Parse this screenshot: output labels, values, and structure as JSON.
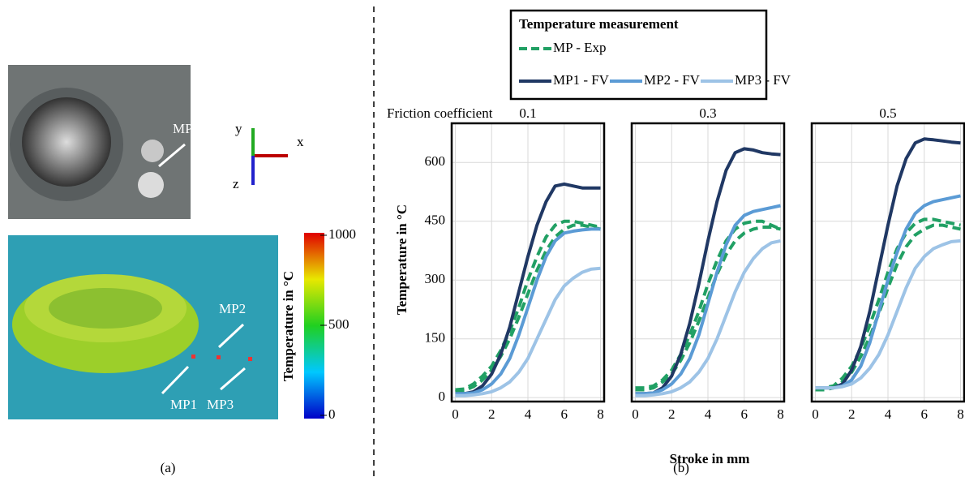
{
  "panel_a": {
    "label": "(a)",
    "photo_label": "MP",
    "axes": {
      "x": "x",
      "y": "y",
      "z": "z"
    },
    "point_labels": [
      "MP1",
      "MP2",
      "MP3"
    ],
    "colorbar": {
      "label": "Temperature in °C",
      "lim": [
        0,
        1000
      ],
      "ticks": [
        0,
        500,
        1000
      ]
    }
  },
  "panel_b": {
    "label": "(b)",
    "row_label": "Friction coefficient",
    "legend_title": "Temperature measurement",
    "x_label": "Stroke in mm",
    "y_label": "Temperature in °C"
  },
  "chart_data": [
    {
      "type": "line",
      "title": "0.1",
      "x": [
        0,
        0.5,
        1,
        1.5,
        2,
        2.5,
        3,
        3.5,
        4,
        4.5,
        5,
        5.5,
        6,
        6.5,
        7,
        7.5,
        8
      ],
      "xlim": [
        -0.2,
        8.2
      ],
      "xticks": [
        0,
        2,
        4,
        6,
        8
      ],
      "ylim": [
        -10,
        700
      ],
      "yticks": [
        0,
        150,
        300,
        450,
        600
      ],
      "grid": true,
      "series": [
        {
          "name": "MP - Exp",
          "color": "#21a064",
          "dashed": true,
          "values": [
            20,
            22,
            35,
            55,
            80,
            120,
            170,
            230,
            300,
            360,
            410,
            440,
            450,
            450,
            445,
            440,
            435
          ]
        },
        {
          "color": "#21a064",
          "dashed": true,
          "values": [
            15,
            18,
            28,
            45,
            70,
            105,
            150,
            205,
            265,
            325,
            375,
            410,
            430,
            440,
            440,
            435,
            430
          ]
        },
        {
          "name": "MP1 - FV",
          "color": "#203864",
          "values": [
            10,
            10,
            15,
            30,
            60,
            110,
            180,
            270,
            360,
            440,
            500,
            540,
            545,
            540,
            535,
            535,
            535
          ]
        },
        {
          "name": "MP2 - FV",
          "color": "#5b9bd5",
          "values": [
            10,
            10,
            12,
            20,
            35,
            60,
            100,
            160,
            230,
            300,
            360,
            400,
            420,
            425,
            428,
            430,
            430
          ]
        },
        {
          "name": "MP3 - FV",
          "color": "#9dc3e6",
          "values": [
            5,
            5,
            7,
            10,
            15,
            25,
            40,
            65,
            100,
            150,
            200,
            250,
            285,
            305,
            320,
            328,
            330
          ]
        }
      ]
    },
    {
      "type": "line",
      "title": "0.3",
      "x": [
        0,
        0.5,
        1,
        1.5,
        2,
        2.5,
        3,
        3.5,
        4,
        4.5,
        5,
        5.5,
        6,
        6.5,
        7,
        7.5,
        8
      ],
      "xlim": [
        -0.2,
        8.2
      ],
      "xticks": [
        0,
        2,
        4,
        6,
        8
      ],
      "ylim": [
        -10,
        700
      ],
      "yticks": [
        0,
        150,
        300,
        450,
        600
      ],
      "grid": true,
      "series": [
        {
          "name": "MP - Exp",
          "color": "#21a064",
          "dashed": true,
          "values": [
            25,
            25,
            30,
            45,
            70,
            110,
            160,
            220,
            290,
            350,
            400,
            430,
            445,
            450,
            450,
            440,
            430
          ]
        },
        {
          "color": "#21a064",
          "dashed": true,
          "values": [
            20,
            20,
            25,
            40,
            60,
            95,
            140,
            195,
            255,
            315,
            365,
            400,
            420,
            430,
            435,
            435,
            430
          ]
        },
        {
          "name": "MP1 - FV",
          "color": "#203864",
          "values": [
            10,
            10,
            12,
            25,
            55,
            110,
            190,
            290,
            400,
            500,
            580,
            625,
            635,
            632,
            625,
            622,
            620
          ]
        },
        {
          "name": "MP2 - FV",
          "color": "#5b9bd5",
          "values": [
            10,
            10,
            12,
            20,
            35,
            60,
            100,
            160,
            240,
            320,
            390,
            440,
            465,
            475,
            480,
            485,
            490
          ]
        },
        {
          "name": "MP3 - FV",
          "color": "#9dc3e6",
          "values": [
            5,
            5,
            7,
            10,
            15,
            25,
            40,
            65,
            100,
            150,
            210,
            270,
            320,
            355,
            380,
            395,
            400
          ]
        }
      ]
    },
    {
      "type": "line",
      "title": "0.5",
      "x": [
        0,
        0.5,
        1,
        1.5,
        2,
        2.5,
        3,
        3.5,
        4,
        4.5,
        5,
        5.5,
        6,
        6.5,
        7,
        7.5,
        8
      ],
      "xlim": [
        -0.2,
        8.2
      ],
      "xticks": [
        0,
        2,
        4,
        6,
        8
      ],
      "ylim": [
        -10,
        700
      ],
      "yticks": [
        0,
        150,
        300,
        450,
        600
      ],
      "grid": true,
      "series": [
        {
          "name": "MP - Exp",
          "color": "#21a064",
          "dashed": true,
          "values": [
            25,
            25,
            30,
            50,
            80,
            125,
            185,
            250,
            320,
            380,
            420,
            445,
            455,
            455,
            450,
            445,
            440
          ]
        },
        {
          "color": "#21a064",
          "dashed": true,
          "values": [
            20,
            20,
            25,
            40,
            65,
            105,
            155,
            215,
            280,
            340,
            385,
            415,
            430,
            440,
            440,
            435,
            430
          ]
        },
        {
          "name": "MP1 - FV",
          "color": "#203864",
          "values": [
            25,
            25,
            25,
            35,
            70,
            130,
            220,
            330,
            440,
            540,
            610,
            650,
            660,
            658,
            655,
            652,
            650
          ]
        },
        {
          "name": "MP2 - FV",
          "color": "#5b9bd5",
          "values": [
            25,
            25,
            25,
            30,
            45,
            80,
            140,
            220,
            300,
            370,
            430,
            470,
            490,
            500,
            505,
            510,
            515
          ]
        },
        {
          "name": "MP3 - FV",
          "color": "#9dc3e6",
          "values": [
            25,
            25,
            25,
            28,
            35,
            50,
            75,
            110,
            160,
            220,
            280,
            330,
            360,
            380,
            390,
            398,
            400
          ]
        }
      ]
    }
  ]
}
